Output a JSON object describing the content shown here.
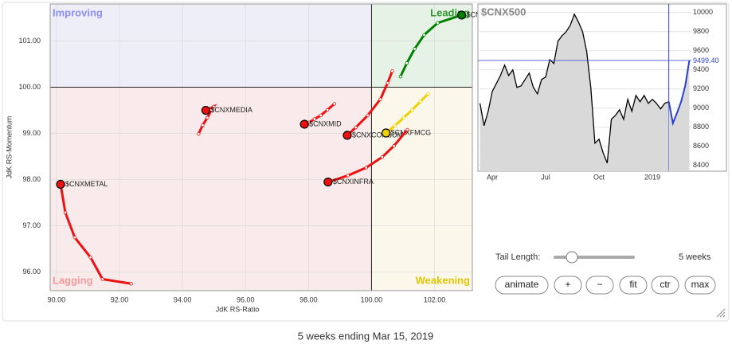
{
  "chart_data": [
    {
      "type": "rrg",
      "x_label": "JdK RS-Ratio",
      "y_label": "JdK RS-Momentum",
      "xlim": [
        89.8,
        103.2
      ],
      "ylim": [
        95.6,
        101.8
      ],
      "xticks": [
        {
          "value": 90,
          "label": "90.00"
        },
        {
          "value": 92,
          "label": "92.00"
        },
        {
          "value": 94,
          "label": "94.00"
        },
        {
          "value": 96,
          "label": "96.00"
        },
        {
          "value": 98,
          "label": "98.00"
        },
        {
          "value": 100,
          "label": "100.00"
        },
        {
          "value": 102,
          "label": "102.00"
        }
      ],
      "yticks": [
        {
          "value": 96,
          "label": "96.00"
        },
        {
          "value": 97,
          "label": "97.00"
        },
        {
          "value": 98,
          "label": "98.00"
        },
        {
          "value": 99,
          "label": "99.00"
        },
        {
          "value": 100,
          "label": "100.00"
        },
        {
          "value": 101,
          "label": "101.00"
        }
      ],
      "xcenter": 100,
      "ycenter": 100,
      "quadrants": [
        {
          "label": "Improving",
          "corner": "top-left",
          "color": "#8f8fef",
          "background": "#eeeef9"
        },
        {
          "label": "Leading",
          "corner": "top-right",
          "color": "#2f9a2f",
          "background": "#e7f2e7"
        },
        {
          "label": "Lagging",
          "corner": "bottom-left",
          "color": "#f09a9a",
          "background": "#f9ebeb"
        },
        {
          "label": "Weakening",
          "corner": "bottom-right",
          "color": "#e3c400",
          "background": "#fbf8eb"
        }
      ],
      "series": [
        {
          "name": "$CNXIT",
          "color": "#008000",
          "x": [
            100.92,
            101.12,
            101.37,
            101.67,
            102.1,
            102.86
          ],
          "y": [
            100.23,
            100.52,
            100.83,
            101.13,
            101.39,
            101.56
          ]
        },
        {
          "name": "$CNXMEDIA",
          "color": "#ee1111",
          "x": [
            94.51,
            94.64,
            94.79,
            94.92,
            94.99,
            94.74
          ],
          "y": [
            98.99,
            99.18,
            99.34,
            99.51,
            99.58,
            99.5
          ]
        },
        {
          "name": "$CNXMID",
          "color": "#ee1111",
          "x": [
            98.82,
            98.6,
            98.39,
            98.19,
            98.02,
            97.87
          ],
          "y": [
            99.64,
            99.51,
            99.39,
            99.31,
            99.24,
            99.2
          ]
        },
        {
          "name": "$CNXCONSUM",
          "color": "#ee1111",
          "x": [
            100.66,
            100.51,
            100.28,
            99.88,
            99.5,
            99.23
          ],
          "y": [
            100.35,
            100.09,
            99.74,
            99.39,
            99.13,
            98.96
          ]
        },
        {
          "name": "$CNXFMCG",
          "color": "#f0d000",
          "x": [
            101.8,
            101.55,
            101.29,
            101.02,
            100.74,
            100.46
          ],
          "y": [
            99.86,
            99.69,
            99.51,
            99.34,
            99.17,
            99.01
          ]
        },
        {
          "name": "$CNXINFRA",
          "color": "#ee1111",
          "x": [
            101.14,
            100.71,
            100.34,
            99.83,
            99.25,
            98.62
          ],
          "y": [
            99.08,
            98.73,
            98.49,
            98.26,
            98.09,
            97.95
          ]
        },
        {
          "name": "$CNXMETAL",
          "color": "#ee1111",
          "x": [
            92.37,
            91.46,
            91.08,
            90.58,
            90.28,
            90.13
          ],
          "y": [
            95.75,
            95.85,
            96.32,
            96.75,
            97.29,
            97.9
          ]
        }
      ]
    },
    {
      "type": "line",
      "title": "$CNX500",
      "categories": [
        null,
        null,
        null,
        "Apr",
        null,
        null,
        null,
        null,
        null,
        null,
        null,
        null,
        null,
        null,
        null,
        null,
        "Jul",
        null,
        null,
        null,
        null,
        null,
        null,
        null,
        null,
        null,
        null,
        null,
        null,
        "Oct",
        null,
        null,
        null,
        null,
        null,
        null,
        null,
        null,
        null,
        null,
        null,
        null,
        "2019",
        null,
        null,
        null,
        null,
        null,
        null,
        null,
        null,
        null
      ],
      "ylim": [
        8340,
        10090
      ],
      "yticks": [
        8400,
        8600,
        8800,
        9000,
        9200,
        9400,
        9600,
        9800,
        10000
      ],
      "grid": true,
      "current": {
        "value": 9499.4,
        "label": "9499.40",
        "color": "#2a3fd0"
      },
      "series": [
        {
          "color": "#000000",
          "values": [
            9050,
            8817,
            8967,
            9175,
            9258,
            9342,
            9450,
            9342,
            9400,
            9217,
            9233,
            9300,
            9367,
            9217,
            9150,
            9300,
            9325,
            9508,
            9467,
            9700,
            9758,
            9800,
            9867,
            9983,
            9900,
            9800,
            9592,
            9217,
            8633,
            8675,
            8533,
            8425,
            8883,
            8925,
            8983,
            8883,
            9092,
            8967,
            9133,
            9067,
            9133,
            9050,
            9092,
            9050,
            8992,
            9050,
            9067,
            null,
            null,
            null,
            null,
            null
          ]
        },
        {
          "color": "#2a3fd0",
          "values": [
            null,
            null,
            null,
            null,
            null,
            null,
            null,
            null,
            null,
            null,
            null,
            null,
            null,
            null,
            null,
            null,
            null,
            null,
            null,
            null,
            null,
            null,
            null,
            null,
            null,
            null,
            null,
            null,
            null,
            null,
            null,
            null,
            null,
            null,
            null,
            null,
            null,
            null,
            null,
            null,
            null,
            null,
            null,
            null,
            null,
            null,
            9067,
            8842,
            8950,
            9067,
            9233,
            9499.4
          ]
        }
      ]
    }
  ],
  "controls": {
    "tail_length_label": "Tail Length:",
    "tail_length_value": "5 weeks",
    "buttons": [
      "animate",
      "+",
      "−",
      "fit",
      "ctr",
      "max"
    ]
  },
  "caption": "5 weeks ending Mar 15, 2019"
}
